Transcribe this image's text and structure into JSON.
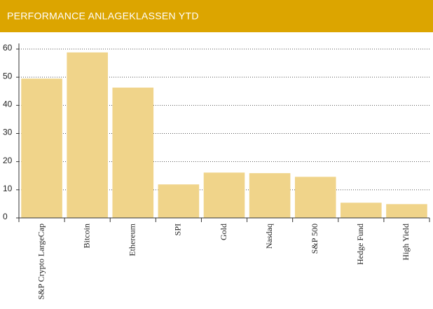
{
  "chart_data": {
    "type": "bar",
    "title": "PERFORMANCE ANLAGEKLASSEN YTD",
    "categories": [
      "S&P Crypto LargeCap",
      "Bitcoin",
      "Ethereum",
      "SPI",
      "Gold",
      "Nasdaq",
      "S&P 500",
      "Hedge Fund",
      "High Yield"
    ],
    "values": [
      49.5,
      58.8,
      46.3,
      11.9,
      16.1,
      15.9,
      14.6,
      5.4,
      4.9
    ],
    "color": "#f0d48a",
    "ylim": [
      0,
      60
    ],
    "yticks": [
      0,
      10,
      20,
      30,
      40,
      50,
      60
    ],
    "grid": true
  }
}
